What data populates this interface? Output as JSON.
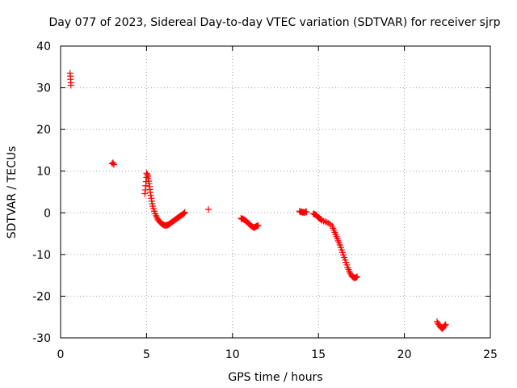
{
  "chart_data": {
    "type": "scatter",
    "title": "Day 077 of 2023, Sidereal Day-to-day VTEC variation (SDTVAR) for receiver sjrp",
    "xlabel": "GPS time / hours",
    "ylabel": "SDTVAR / TECUs",
    "xlim": [
      0,
      25
    ],
    "ylim": [
      -30,
      40
    ],
    "xticks": [
      0,
      5,
      10,
      15,
      20,
      25
    ],
    "yticks": [
      -30,
      -20,
      -10,
      0,
      10,
      20,
      30,
      40
    ],
    "xtick_labels": [
      "0",
      "5",
      "10",
      "15",
      "20",
      "25"
    ],
    "ytick_labels": [
      "-30",
      "-20",
      "-10",
      "0",
      "10",
      "20",
      "30",
      "40"
    ],
    "grid": true,
    "marker": "plus",
    "color": "#ff0000",
    "series": [
      {
        "name": "SDTVAR",
        "points": [
          [
            0.55,
            33.5
          ],
          [
            0.57,
            32.8
          ],
          [
            0.58,
            32.0
          ],
          [
            0.6,
            31.2
          ],
          [
            0.6,
            30.6
          ],
          [
            3.0,
            11.8
          ],
          [
            3.05,
            12.0
          ],
          [
            3.1,
            11.6
          ],
          [
            4.9,
            4.6
          ],
          [
            4.93,
            5.5
          ],
          [
            4.95,
            6.5
          ],
          [
            4.97,
            7.5
          ],
          [
            5.0,
            8.5
          ],
          [
            5.0,
            9.5
          ],
          [
            5.05,
            9.2
          ],
          [
            5.08,
            8.8
          ],
          [
            5.1,
            8.2
          ],
          [
            5.12,
            7.6
          ],
          [
            5.15,
            7.0
          ],
          [
            5.18,
            6.3
          ],
          [
            5.2,
            5.6
          ],
          [
            5.22,
            4.9
          ],
          [
            5.25,
            4.2
          ],
          [
            5.28,
            3.5
          ],
          [
            5.3,
            2.8
          ],
          [
            5.33,
            2.2
          ],
          [
            5.36,
            1.6
          ],
          [
            5.4,
            1.0
          ],
          [
            5.45,
            0.4
          ],
          [
            5.5,
            -0.2
          ],
          [
            5.55,
            -0.7
          ],
          [
            5.6,
            -1.1
          ],
          [
            5.65,
            -1.5
          ],
          [
            5.7,
            -1.8
          ],
          [
            5.75,
            -2.1
          ],
          [
            5.8,
            -2.3
          ],
          [
            5.85,
            -2.5
          ],
          [
            5.9,
            -2.65
          ],
          [
            5.95,
            -2.8
          ],
          [
            6.0,
            -2.9
          ],
          [
            6.05,
            -3.0
          ],
          [
            6.1,
            -3.0
          ],
          [
            6.15,
            -3.0
          ],
          [
            6.2,
            -2.95
          ],
          [
            6.25,
            -2.85
          ],
          [
            6.3,
            -2.75
          ],
          [
            6.35,
            -2.6
          ],
          [
            6.4,
            -2.45
          ],
          [
            6.45,
            -2.3
          ],
          [
            6.5,
            -2.15
          ],
          [
            6.55,
            -2.0
          ],
          [
            6.6,
            -1.85
          ],
          [
            6.65,
            -1.7
          ],
          [
            6.7,
            -1.55
          ],
          [
            6.75,
            -1.4
          ],
          [
            6.8,
            -1.25
          ],
          [
            6.85,
            -1.1
          ],
          [
            6.9,
            -0.95
          ],
          [
            6.95,
            -0.8
          ],
          [
            7.0,
            -0.65
          ],
          [
            7.05,
            -0.5
          ],
          [
            7.1,
            -0.35
          ],
          [
            7.15,
            -0.2
          ],
          [
            7.2,
            -0.05
          ],
          [
            7.22,
            0.1
          ],
          [
            8.6,
            0.8
          ],
          [
            10.5,
            -1.3
          ],
          [
            10.55,
            -1.5
          ],
          [
            10.6,
            -1.4
          ],
          [
            10.65,
            -1.6
          ],
          [
            10.7,
            -1.7
          ],
          [
            10.75,
            -1.8
          ],
          [
            10.8,
            -2.0
          ],
          [
            10.85,
            -2.2
          ],
          [
            10.9,
            -2.4
          ],
          [
            10.95,
            -2.6
          ],
          [
            11.0,
            -2.8
          ],
          [
            11.05,
            -3.0
          ],
          [
            11.1,
            -3.2
          ],
          [
            11.15,
            -3.35
          ],
          [
            11.2,
            -3.45
          ],
          [
            11.25,
            -3.5
          ],
          [
            11.3,
            -3.45
          ],
          [
            11.35,
            -3.35
          ],
          [
            11.4,
            -3.25
          ],
          [
            11.45,
            -3.15
          ],
          [
            11.5,
            -3.05
          ],
          [
            13.9,
            0.4
          ],
          [
            13.95,
            0.2
          ],
          [
            14.0,
            0.3
          ],
          [
            14.05,
            0.1
          ],
          [
            14.1,
            0.2
          ],
          [
            14.15,
            0.0
          ],
          [
            14.2,
            0.1
          ],
          [
            14.25,
            0.3
          ],
          [
            14.3,
            0.2
          ],
          [
            14.7,
            -0.2
          ],
          [
            14.75,
            -0.3
          ],
          [
            14.8,
            -0.4
          ],
          [
            14.85,
            -0.5
          ],
          [
            14.9,
            -0.7
          ],
          [
            14.95,
            -0.9
          ],
          [
            15.0,
            -1.1
          ],
          [
            15.05,
            -1.3
          ],
          [
            15.1,
            -1.5
          ],
          [
            15.15,
            -1.6
          ],
          [
            15.2,
            -1.8
          ],
          [
            15.3,
            -2.0
          ],
          [
            15.4,
            -2.1
          ],
          [
            15.5,
            -2.3
          ],
          [
            15.6,
            -2.5
          ],
          [
            15.7,
            -2.8
          ],
          [
            15.8,
            -3.2
          ],
          [
            15.85,
            -3.7
          ],
          [
            15.9,
            -4.2
          ],
          [
            15.95,
            -4.7
          ],
          [
            16.0,
            -5.2
          ],
          [
            16.05,
            -5.7
          ],
          [
            16.1,
            -6.2
          ],
          [
            16.15,
            -6.7
          ],
          [
            16.2,
            -7.2
          ],
          [
            16.25,
            -7.7
          ],
          [
            16.3,
            -8.3
          ],
          [
            16.35,
            -8.9
          ],
          [
            16.4,
            -9.5
          ],
          [
            16.45,
            -10.1
          ],
          [
            16.5,
            -10.7
          ],
          [
            16.55,
            -11.3
          ],
          [
            16.6,
            -11.9
          ],
          [
            16.65,
            -12.5
          ],
          [
            16.7,
            -13.1
          ],
          [
            16.75,
            -13.6
          ],
          [
            16.8,
            -14.1
          ],
          [
            16.85,
            -14.5
          ],
          [
            16.9,
            -14.9
          ],
          [
            16.95,
            -15.2
          ],
          [
            17.0,
            -15.4
          ],
          [
            17.05,
            -15.5
          ],
          [
            17.1,
            -15.6
          ],
          [
            17.15,
            -15.55
          ],
          [
            17.2,
            -15.5
          ],
          [
            17.25,
            -15.3
          ],
          [
            21.9,
            -26.1
          ],
          [
            21.95,
            -26.5
          ],
          [
            22.0,
            -26.8
          ],
          [
            22.05,
            -27.1
          ],
          [
            22.1,
            -27.4
          ],
          [
            22.15,
            -27.6
          ],
          [
            22.2,
            -27.8
          ],
          [
            22.25,
            -27.6
          ],
          [
            22.3,
            -27.3
          ],
          [
            22.35,
            -27.0
          ],
          [
            22.4,
            -26.8
          ]
        ]
      }
    ]
  }
}
